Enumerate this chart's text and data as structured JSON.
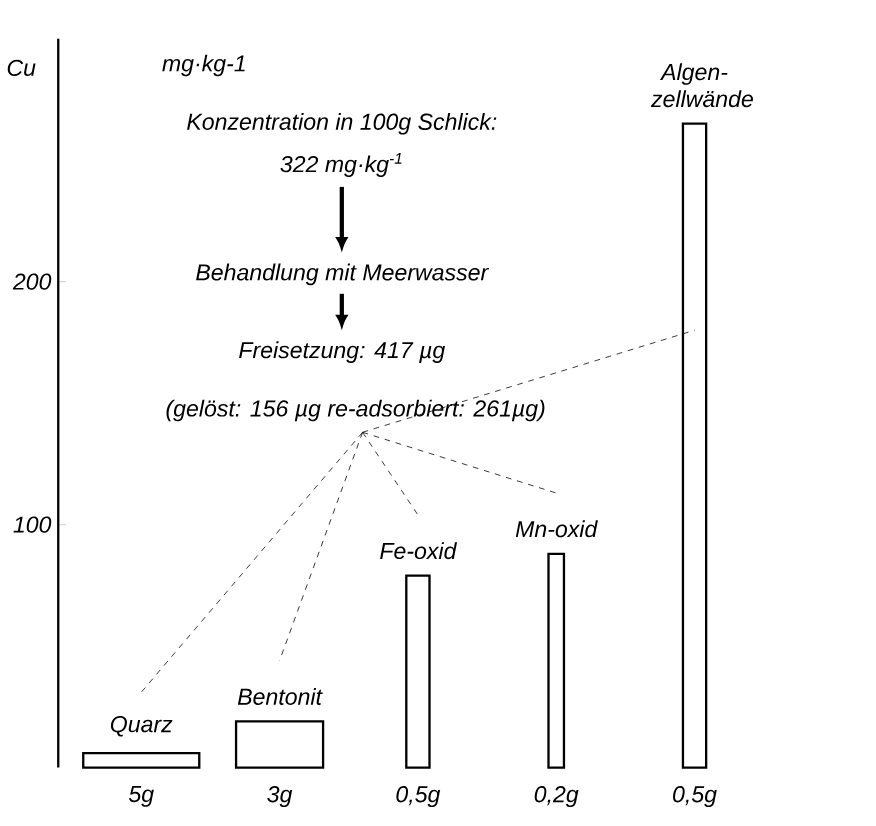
{
  "chart_data": {
    "type": "bar",
    "ylabel": "Cu",
    "categories": [
      "5g",
      "3g",
      "0,5g",
      "0,2g",
      "0,5g"
    ],
    "values": [
      6,
      19,
      79,
      88,
      265
    ],
    "color": "#ffffff",
    "ylim": [
      0,
      300
    ],
    "yticks": [
      100,
      200
    ],
    "grid": false,
    "annotations": [
      "mg·kg-1",
      "Konzentration in 100g Schlick:",
      "322 mg·kg$^{-1}$",
      "Behandlung mit Meerwasser",
      "Freisetzung: 417 µg",
      "(gelöst: 156 µg  re-adsorbiert: 261µg)",
      "Quarz",
      "Bentonit",
      "Fe-oxid",
      "Mn-oxid",
      "Algen-zellwände"
    ]
  }
}
